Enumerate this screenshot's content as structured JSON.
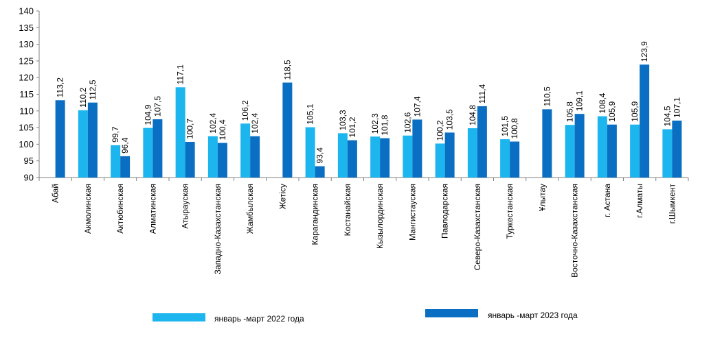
{
  "chart_data": {
    "type": "bar",
    "categories": [
      "Абай",
      "Акмолинская",
      "Актюбинская",
      "Алматинская",
      "Атырауская",
      "Западно-Казахстанская",
      "Жамбылская",
      "Жетісу",
      "Карагандинская",
      "Костанайская",
      "Кызылординская",
      "Мангистауская",
      "Павлодарская",
      "Северо-Казахстанская",
      "Туркестанская",
      "Ұлытау",
      "Восточно-Казахстанская",
      "г. Астана",
      "г.Алматы",
      "г.Шымкент"
    ],
    "series": [
      {
        "name": "январь -март 2022 года",
        "color": "#1CB5EE",
        "values": [
          null,
          110.2,
          99.7,
          104.9,
          117.1,
          102.4,
          106.2,
          null,
          105.1,
          103.3,
          102.3,
          102.6,
          100.2,
          104.8,
          101.5,
          null,
          105.8,
          108.4,
          105.9,
          104.5
        ],
        "labels": [
          null,
          "110,2",
          "99,7",
          "104,9",
          "117,1",
          "102,4",
          "106,2",
          null,
          "105,1",
          "103,3",
          "102,3",
          "102,6",
          "100,2",
          "104,8",
          "101,5",
          null,
          "105,8",
          "108,4",
          "105,9",
          "104,5"
        ]
      },
      {
        "name": "январь -март 2023 года",
        "color": "#0A6EC2",
        "values": [
          113.2,
          112.5,
          96.4,
          107.5,
          100.7,
          100.4,
          102.4,
          118.5,
          93.4,
          101.2,
          101.8,
          107.4,
          103.5,
          111.4,
          100.8,
          110.5,
          109.1,
          105.9,
          123.9,
          107.1
        ],
        "labels": [
          "113,2",
          "112,5",
          "96,4",
          "107,5",
          "100,7",
          "100,4",
          "102,4",
          "118,5",
          "93,4",
          "101,2",
          "101,8",
          "107,4",
          "103,5",
          "111,4",
          "100,8",
          "110,5",
          "109,1",
          "105,9",
          "123,9",
          "107,1"
        ]
      }
    ],
    "y_ticks": [
      90,
      95,
      100,
      105,
      110,
      115,
      120,
      125,
      130,
      135,
      140
    ],
    "ylim": [
      90,
      140
    ],
    "grid": false,
    "legend": "bottom"
  }
}
